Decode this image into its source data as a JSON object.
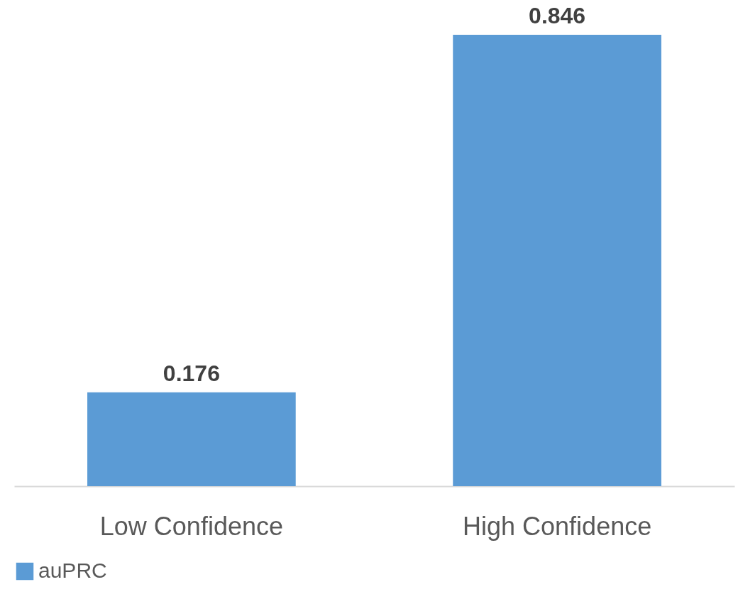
{
  "chart_data": {
    "type": "bar",
    "categories": [
      "Low Confidence",
      "High Confidence"
    ],
    "series": [
      {
        "name": "auPRC",
        "color": "#5b9bd5",
        "values": [
          0.176,
          0.846
        ]
      }
    ],
    "data_labels": true,
    "legend": "bottom",
    "grid": false
  }
}
